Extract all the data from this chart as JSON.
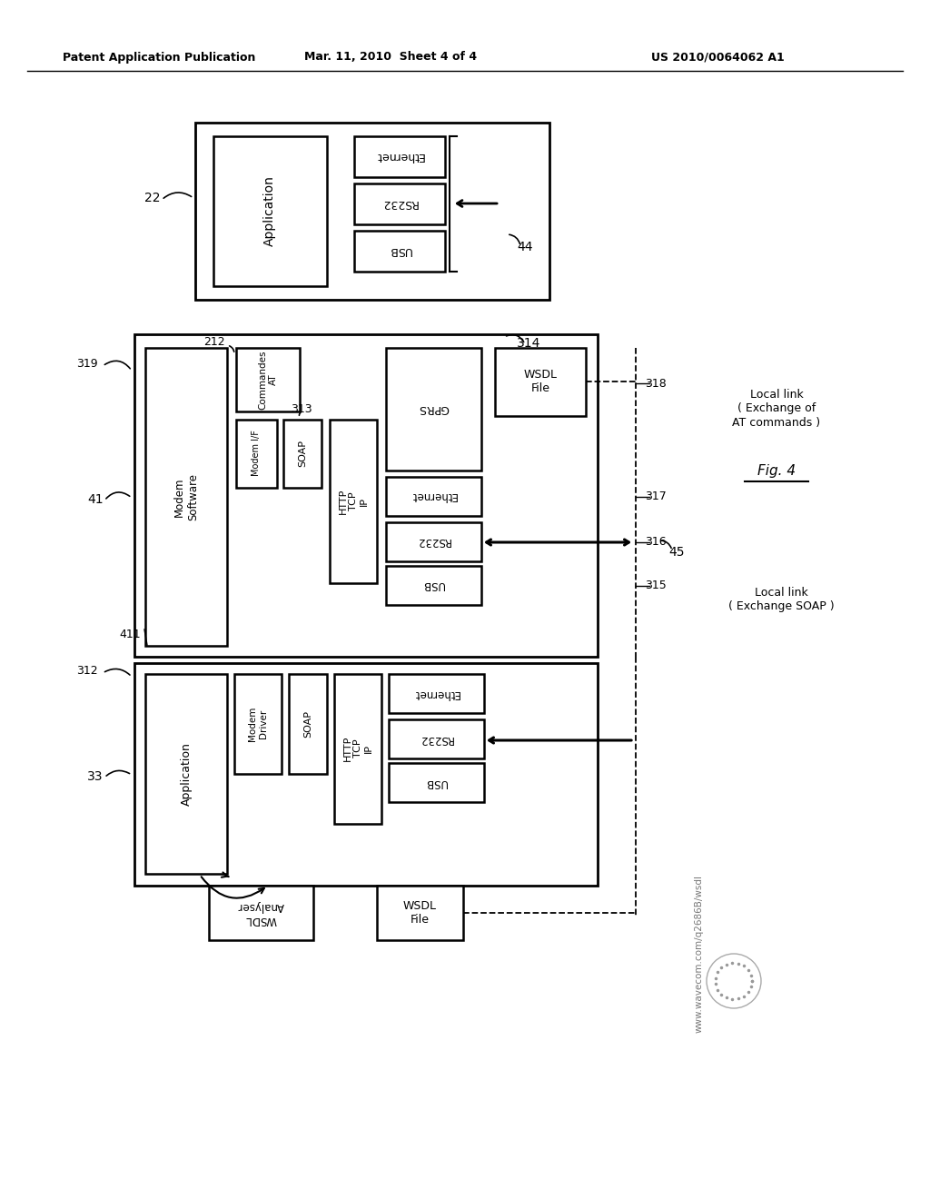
{
  "bg_color": "#ffffff",
  "header_left": "Patent Application Publication",
  "header_center": "Mar. 11, 2010  Sheet 4 of 4",
  "header_right": "US 2010/0064062 A1",
  "fig_label": "Fig. 4",
  "watermark": "www.wavecom.com/q2686B/wsdl"
}
